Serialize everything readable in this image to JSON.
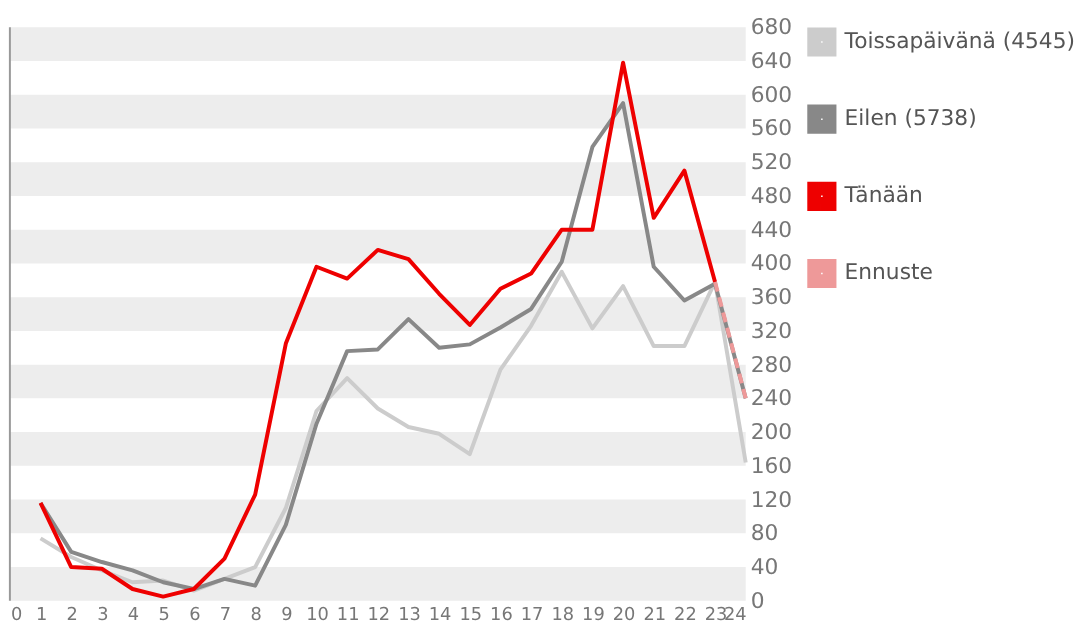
{
  "chart_data": {
    "type": "line",
    "x": [
      1,
      2,
      3,
      4,
      5,
      6,
      7,
      8,
      9,
      10,
      11,
      12,
      13,
      14,
      15,
      16,
      17,
      18,
      19,
      20,
      21,
      22,
      23,
      24
    ],
    "xlim": [
      0,
      24
    ],
    "xticks": [
      0,
      1,
      2,
      3,
      4,
      5,
      6,
      7,
      8,
      9,
      10,
      11,
      12,
      13,
      14,
      15,
      16,
      17,
      18,
      19,
      20,
      21,
      22,
      23,
      24
    ],
    "ylim": [
      0,
      680
    ],
    "yticks": [
      0,
      40,
      80,
      120,
      160,
      200,
      240,
      280,
      320,
      360,
      400,
      440,
      480,
      520,
      560,
      600,
      640,
      680
    ],
    "grid": false,
    "legend": "right",
    "marker": "none",
    "bands": [
      {
        "axis": "y",
        "from": 0,
        "to": 40,
        "color": "#ededed"
      },
      {
        "axis": "y",
        "from": 80,
        "to": 120,
        "color": "#ededed"
      },
      {
        "axis": "y",
        "from": 160,
        "to": 200,
        "color": "#ededed"
      },
      {
        "axis": "y",
        "from": 240,
        "to": 280,
        "color": "#ededed"
      },
      {
        "axis": "y",
        "from": 320,
        "to": 360,
        "color": "#ededed"
      },
      {
        "axis": "y",
        "from": 400,
        "to": 440,
        "color": "#ededed"
      },
      {
        "axis": "y",
        "from": 480,
        "to": 520,
        "color": "#ededed"
      },
      {
        "axis": "y",
        "from": 560,
        "to": 600,
        "color": "#ededed"
      },
      {
        "axis": "y",
        "from": 640,
        "to": 680,
        "color": "#ededed"
      }
    ],
    "series": [
      {
        "name": "Toissapäivänä (4545)",
        "color": "#cccccc",
        "line_style": "solid",
        "values": [
          74,
          52,
          36,
          22,
          24,
          12,
          26,
          40,
          110,
          225,
          264,
          228,
          206,
          198,
          174,
          274,
          326,
          390,
          323,
          373,
          302,
          302,
          378,
          164
        ]
      },
      {
        "name": "Eilen (5738)",
        "color": "#888888",
        "line_style": "solid",
        "values": [
          116,
          58,
          46,
          36,
          22,
          14,
          26,
          18,
          90,
          210,
          296,
          298,
          334,
          300,
          304,
          324,
          346,
          402,
          538,
          590,
          396,
          356,
          376,
          240
        ]
      },
      {
        "name": "Tänään",
        "color": "#ee0000",
        "line_style": "solid",
        "values": [
          116,
          40,
          38,
          14,
          5,
          14,
          50,
          126,
          305,
          396,
          382,
          416,
          405,
          364,
          327,
          370,
          388,
          440,
          440,
          638,
          454,
          510,
          378,
          null
        ]
      },
      {
        "name": "Ennuste",
        "color": "#ee9999",
        "line_style": "dashed",
        "x": [
          23,
          24
        ],
        "values": [
          378,
          240
        ]
      }
    ]
  }
}
